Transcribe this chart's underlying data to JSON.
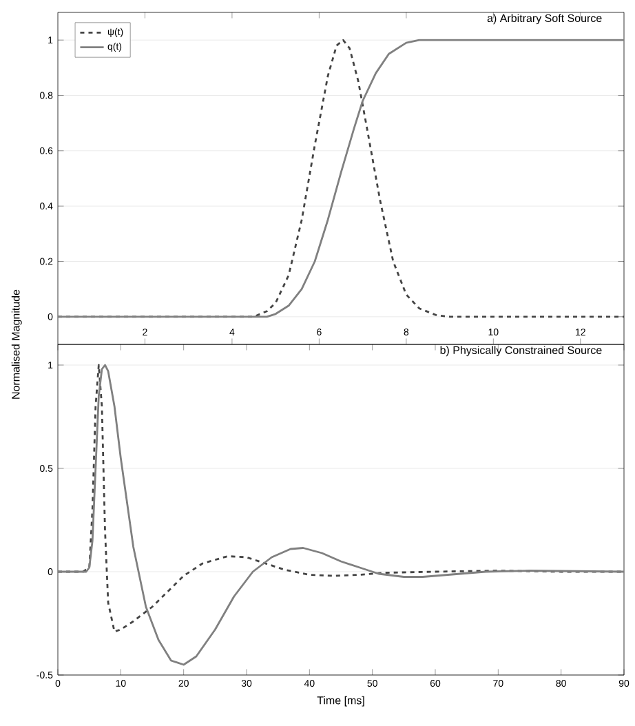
{
  "chart_data": [
    {
      "type": "line",
      "title": "a) Arbitrary Soft Source",
      "xlim": [
        0,
        13
      ],
      "ylim": [
        -0.1,
        1.1
      ],
      "xticks": [
        2,
        4,
        6,
        8,
        10,
        12
      ],
      "yticks": [
        0,
        0.2,
        0.4,
        0.6,
        0.8,
        1
      ],
      "grid": "y",
      "legend": "top left",
      "series": [
        {
          "name": "ψ(t)",
          "color": "#444444",
          "line_style": "dashed",
          "x": [
            0,
            1,
            2,
            3,
            4,
            4.5,
            4.8,
            5.0,
            5.3,
            5.6,
            5.9,
            6.2,
            6.4,
            6.55,
            6.7,
            6.9,
            7.1,
            7.4,
            7.7,
            8.0,
            8.3,
            8.7,
            9,
            10,
            11,
            12,
            13
          ],
          "values": [
            0,
            0,
            0,
            0,
            0,
            0,
            0.02,
            0.05,
            0.15,
            0.35,
            0.62,
            0.87,
            0.98,
            1.0,
            0.97,
            0.85,
            0.68,
            0.42,
            0.2,
            0.08,
            0.03,
            0.005,
            0,
            0,
            0,
            0,
            0
          ]
        },
        {
          "name": "q(t)",
          "color": "#808080",
          "line_style": "solid",
          "x": [
            0,
            1,
            2,
            3,
            4,
            4.8,
            5.0,
            5.3,
            5.6,
            5.9,
            6.2,
            6.5,
            6.8,
            7.0,
            7.3,
            7.6,
            8.0,
            8.3,
            9,
            10,
            11,
            12,
            13
          ],
          "values": [
            0,
            0,
            0,
            0,
            0,
            0,
            0.01,
            0.04,
            0.1,
            0.2,
            0.35,
            0.52,
            0.68,
            0.78,
            0.88,
            0.95,
            0.99,
            1.0,
            1.0,
            1.0,
            1.0,
            1.0,
            1.0
          ]
        }
      ]
    },
    {
      "type": "line",
      "title": "b) Physically Constrained Source",
      "xlabel": "Time [ms]",
      "ylabel": "Normalised Magnitude",
      "xlim": [
        0,
        90
      ],
      "ylim": [
        -0.5,
        1.1
      ],
      "xticks": [
        0,
        10,
        20,
        30,
        40,
        50,
        60,
        70,
        80,
        90
      ],
      "yticks": [
        -0.5,
        0,
        0.5,
        1
      ],
      "grid": "y",
      "series": [
        {
          "color": "#444444",
          "line_style": "dashed",
          "x": [
            0,
            2,
            4,
            5,
            5.5,
            6,
            6.5,
            7,
            7.5,
            8,
            9,
            10,
            12,
            15,
            18,
            20,
            23,
            27,
            30,
            33,
            36,
            40,
            44,
            48,
            52,
            60,
            70,
            80,
            90
          ],
          "values": [
            0,
            0,
            0,
            0.02,
            0.3,
            0.8,
            1.0,
            0.8,
            0.2,
            -0.15,
            -0.29,
            -0.28,
            -0.24,
            -0.17,
            -0.08,
            -0.02,
            0.04,
            0.075,
            0.07,
            0.04,
            0.01,
            -0.015,
            -0.02,
            -0.015,
            -0.005,
            0,
            0.005,
            0,
            0
          ]
        },
        {
          "color": "#808080",
          "line_style": "solid",
          "x": [
            0,
            2,
            4.5,
            5,
            5.5,
            6,
            6.5,
            7,
            7.5,
            8,
            9,
            10,
            12,
            14,
            16,
            18,
            20,
            22,
            25,
            28,
            31,
            34,
            37,
            39,
            42,
            45,
            48,
            51,
            55,
            58,
            62,
            68,
            75,
            90
          ],
          "values": [
            0,
            0,
            0,
            0.02,
            0.15,
            0.5,
            0.85,
            0.98,
            1.0,
            0.97,
            0.8,
            0.55,
            0.12,
            -0.17,
            -0.33,
            -0.43,
            -0.45,
            -0.41,
            -0.28,
            -0.12,
            0.0,
            0.07,
            0.11,
            0.115,
            0.09,
            0.05,
            0.02,
            -0.01,
            -0.025,
            -0.025,
            -0.015,
            0.0,
            0.005,
            0
          ]
        }
      ]
    }
  ]
}
